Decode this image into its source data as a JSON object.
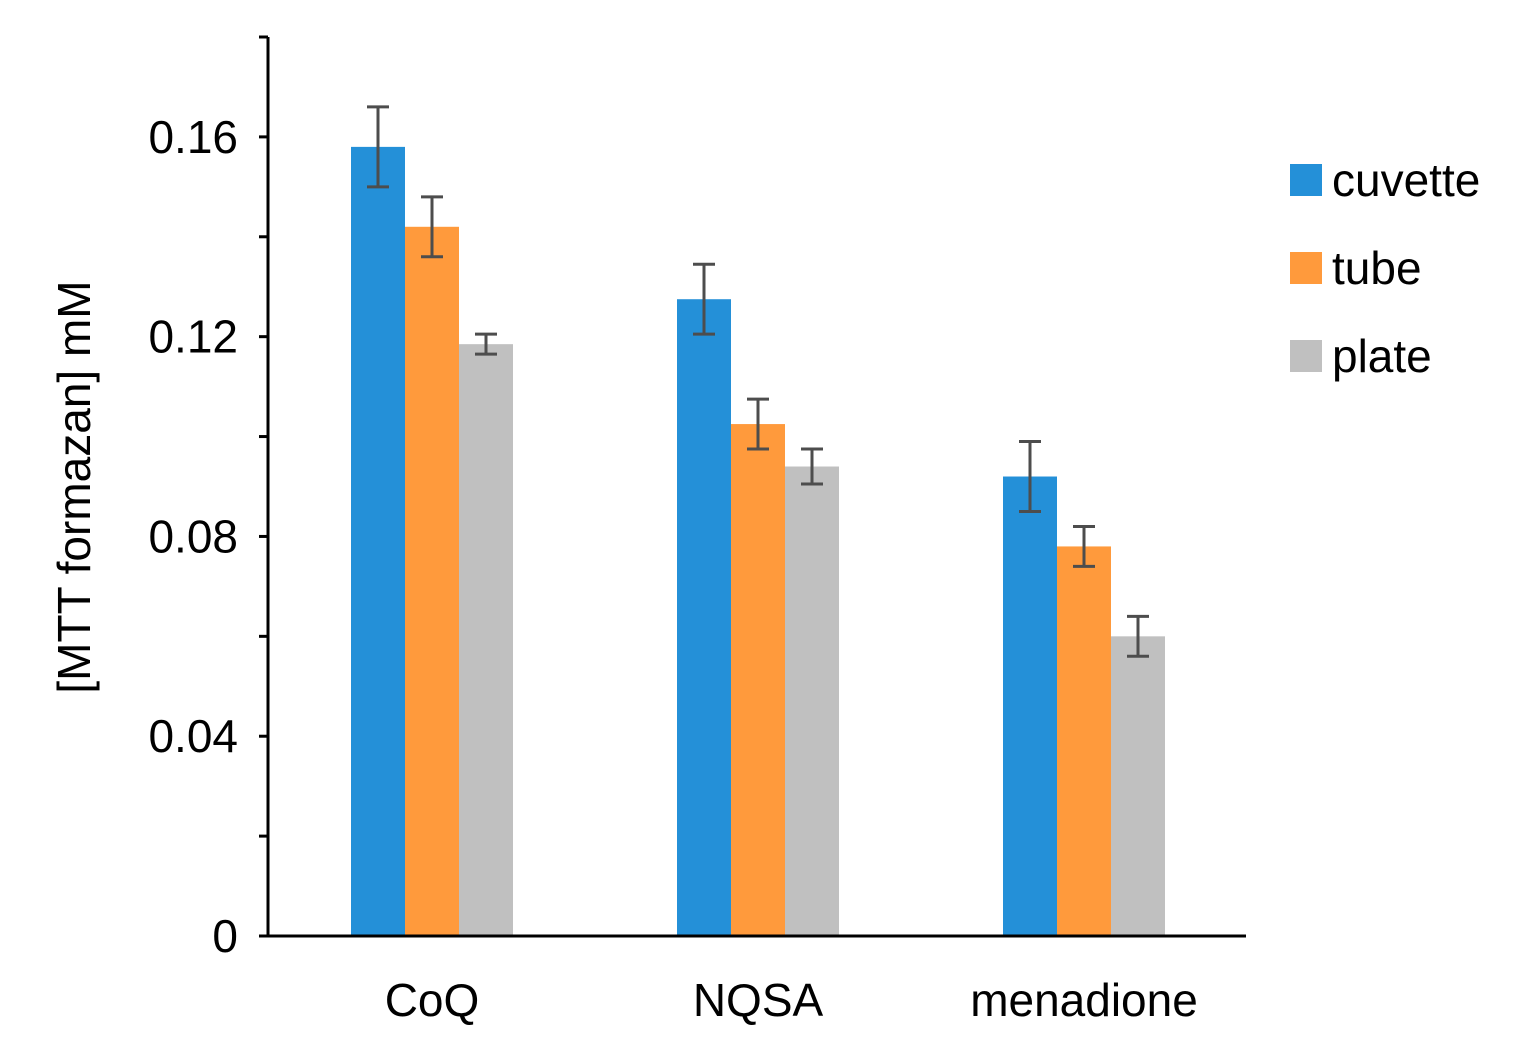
{
  "chart_data": {
    "type": "bar",
    "title": "",
    "xlabel": "",
    "ylabel": "[MTT formazan] mM",
    "ylim": [
      0,
      0.18
    ],
    "yticks": [
      0,
      0.04,
      0.08,
      0.12,
      0.16
    ],
    "ytick_labels": [
      "0",
      "0.04",
      "0.08",
      "0.12",
      "0.16"
    ],
    "categories": [
      "CoQ",
      "NQSA",
      "menadione"
    ],
    "grid": false,
    "legend_position": "right",
    "series": [
      {
        "name": "cuvette",
        "color": "#2490d8",
        "values": [
          0.158,
          0.1275,
          0.092
        ],
        "errors": [
          0.008,
          0.007,
          0.007
        ]
      },
      {
        "name": "tube",
        "color": "#ff9a3c",
        "values": [
          0.142,
          0.1025,
          0.078
        ],
        "errors": [
          0.006,
          0.005,
          0.004
        ]
      },
      {
        "name": "plate",
        "color": "#c0c0c0",
        "values": [
          0.1185,
          0.094,
          0.06
        ],
        "errors": [
          0.002,
          0.0035,
          0.004
        ]
      }
    ]
  }
}
